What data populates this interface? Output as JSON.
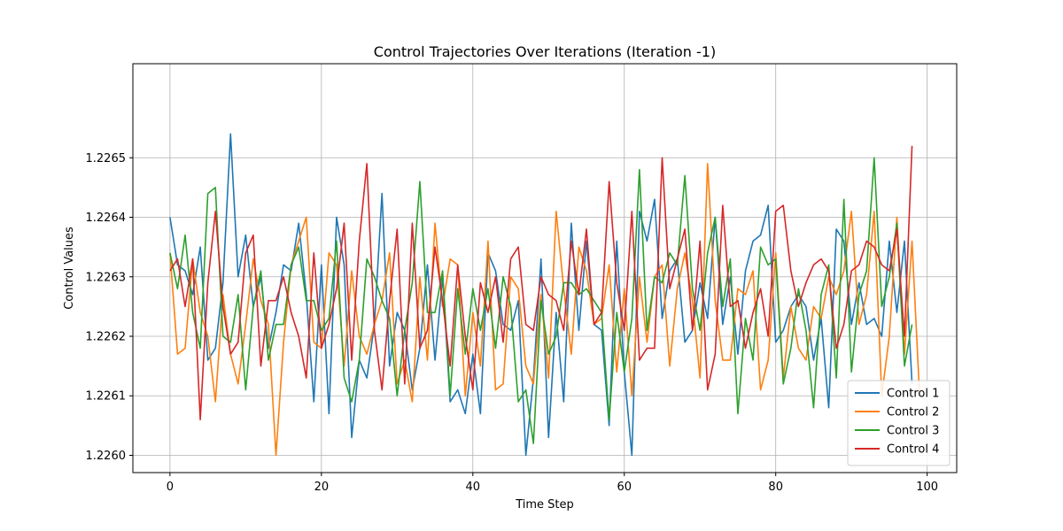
{
  "chart_data": {
    "type": "line",
    "title": "Control Trajectories Over Iterations (Iteration -1)",
    "xlabel": "Time Step",
    "ylabel": "Control Values",
    "xlim": [
      -4.9,
      103.9
    ],
    "ylim": [
      1.225971,
      1.226658
    ],
    "xticks": [
      0,
      20,
      40,
      60,
      80,
      100
    ],
    "yticks": [
      1.226,
      1.2261,
      1.2262,
      1.2263,
      1.2264,
      1.2265
    ],
    "xtick_labels": [
      "0",
      "20",
      "40",
      "60",
      "80",
      "100"
    ],
    "ytick_labels": [
      "1.2260",
      "1.2261",
      "1.2262",
      "1.2263",
      "1.2264",
      "1.2265"
    ],
    "grid": true,
    "legend_position": "lower-right",
    "x_start": 0,
    "series": [
      {
        "name": "Control 1",
        "color": "#1f77b4",
        "values": [
          1.2264,
          1.22632,
          1.22631,
          1.22627,
          1.22635,
          1.22616,
          1.22618,
          1.22629,
          1.22654,
          1.2263,
          1.22637,
          1.22625,
          1.2263,
          1.22618,
          1.22624,
          1.22632,
          1.22631,
          1.22639,
          1.22627,
          1.22609,
          1.22632,
          1.22607,
          1.2264,
          1.22632,
          1.22603,
          1.22616,
          1.22613,
          1.22622,
          1.22644,
          1.22615,
          1.22624,
          1.22621,
          1.22611,
          1.22618,
          1.22632,
          1.22616,
          1.2263,
          1.22609,
          1.22611,
          1.22607,
          1.22617,
          1.22607,
          1.22634,
          1.22631,
          1.22622,
          1.22621,
          1.22626,
          1.226,
          1.22613,
          1.22633,
          1.22603,
          1.22624,
          1.22609,
          1.22639,
          1.22621,
          1.22636,
          1.22622,
          1.22621,
          1.22605,
          1.22636,
          1.22614,
          1.226,
          1.22641,
          1.22636,
          1.22643,
          1.22623,
          1.22631,
          1.22633,
          1.22619,
          1.22621,
          1.22629,
          1.22623,
          1.2264,
          1.22622,
          1.2263,
          1.22617,
          1.22631,
          1.22636,
          1.22637,
          1.22642,
          1.22619,
          1.22621,
          1.22625,
          1.22627,
          1.22625,
          1.22616,
          1.22623,
          1.22608,
          1.22638,
          1.22636,
          1.22622,
          1.22629,
          1.22622,
          1.22623,
          1.2262,
          1.22636,
          1.22624,
          1.22636,
          1.22612
        ]
      },
      {
        "name": "Control 2",
        "color": "#ff7f0e",
        "values": [
          1.22634,
          1.22617,
          1.22618,
          1.22633,
          1.22624,
          1.2262,
          1.22609,
          1.22627,
          1.22617,
          1.22612,
          1.22622,
          1.22633,
          1.22626,
          1.22622,
          1.226,
          1.22619,
          1.22632,
          1.22636,
          1.2264,
          1.22619,
          1.22618,
          1.22634,
          1.22632,
          1.22615,
          1.22631,
          1.2262,
          1.22617,
          1.22622,
          1.22626,
          1.22634,
          1.22612,
          1.22616,
          1.22609,
          1.2263,
          1.22616,
          1.22639,
          1.22625,
          1.22633,
          1.22632,
          1.2261,
          1.22624,
          1.22615,
          1.22636,
          1.22611,
          1.22612,
          1.2263,
          1.22628,
          1.22615,
          1.22612,
          1.22627,
          1.22613,
          1.22641,
          1.22628,
          1.22617,
          1.22635,
          1.22631,
          1.22622,
          1.22623,
          1.22632,
          1.22614,
          1.22628,
          1.2261,
          1.2263,
          1.22619,
          1.2263,
          1.22632,
          1.22615,
          1.22628,
          1.22634,
          1.22626,
          1.22613,
          1.22649,
          1.22626,
          1.22616,
          1.22616,
          1.22628,
          1.22627,
          1.22631,
          1.22611,
          1.22616,
          1.22634,
          1.22613,
          1.22625,
          1.22618,
          1.22616,
          1.22625,
          1.22623,
          1.2263,
          1.22627,
          1.22631,
          1.22641,
          1.22622,
          1.22627,
          1.22641,
          1.2261,
          1.2262,
          1.2264,
          1.22617,
          1.22636,
          1.2261
        ]
      },
      {
        "name": "Control 3",
        "color": "#2ca02c",
        "values": [
          1.22634,
          1.22628,
          1.22637,
          1.22624,
          1.22618,
          1.22644,
          1.22645,
          1.2262,
          1.22619,
          1.22627,
          1.22611,
          1.22625,
          1.22631,
          1.22616,
          1.22622,
          1.22622,
          1.22632,
          1.22635,
          1.22626,
          1.22626,
          1.22621,
          1.22623,
          1.22636,
          1.22613,
          1.22609,
          1.22616,
          1.22633,
          1.2263,
          1.22626,
          1.22623,
          1.2261,
          1.22621,
          1.22629,
          1.22646,
          1.22624,
          1.22624,
          1.22631,
          1.2261,
          1.22628,
          1.22617,
          1.22628,
          1.22621,
          1.22628,
          1.22618,
          1.2263,
          1.22625,
          1.22609,
          1.22611,
          1.22602,
          1.22626,
          1.22617,
          1.2262,
          1.22629,
          1.22629,
          1.22627,
          1.22628,
          1.22626,
          1.22624,
          1.22606,
          1.22624,
          1.22614,
          1.22623,
          1.22648,
          1.22621,
          1.2263,
          1.22629,
          1.22634,
          1.22632,
          1.22647,
          1.22628,
          1.22621,
          1.22634,
          1.2264,
          1.22625,
          1.22633,
          1.22607,
          1.22623,
          1.22616,
          1.22635,
          1.22632,
          1.22633,
          1.22612,
          1.22618,
          1.22628,
          1.22621,
          1.22608,
          1.22627,
          1.22632,
          1.22613,
          1.22643,
          1.22614,
          1.22627,
          1.22631,
          1.2265,
          1.22625,
          1.2263,
          1.22639,
          1.22615,
          1.22622
        ]
      },
      {
        "name": "Control 4",
        "color": "#d62728",
        "values": [
          1.22631,
          1.22633,
          1.22625,
          1.22633,
          1.22606,
          1.22629,
          1.22641,
          1.22625,
          1.22617,
          1.22619,
          1.22634,
          1.22637,
          1.22615,
          1.22626,
          1.22626,
          1.2263,
          1.22624,
          1.2262,
          1.22613,
          1.22634,
          1.22618,
          1.22622,
          1.22628,
          1.22639,
          1.22616,
          1.22636,
          1.22649,
          1.22621,
          1.22611,
          1.22626,
          1.22638,
          1.22612,
          1.22639,
          1.22618,
          1.22621,
          1.22635,
          1.22626,
          1.22615,
          1.22632,
          1.2262,
          1.22611,
          1.22629,
          1.22624,
          1.2263,
          1.22619,
          1.22633,
          1.22635,
          1.22622,
          1.22621,
          1.2263,
          1.22627,
          1.22626,
          1.22621,
          1.22636,
          1.22627,
          1.22638,
          1.22622,
          1.22624,
          1.22646,
          1.22629,
          1.22621,
          1.22641,
          1.22616,
          1.22618,
          1.22618,
          1.2265,
          1.22628,
          1.22633,
          1.22638,
          1.22621,
          1.22636,
          1.22611,
          1.22617,
          1.22642,
          1.22625,
          1.22626,
          1.22618,
          1.22624,
          1.22628,
          1.2262,
          1.22641,
          1.22642,
          1.22631,
          1.22625,
          1.22629,
          1.22632,
          1.22633,
          1.22631,
          1.22618,
          1.22622,
          1.22631,
          1.22632,
          1.22636,
          1.22635,
          1.22632,
          1.22631,
          1.22638,
          1.2262,
          1.22652
        ]
      }
    ]
  }
}
